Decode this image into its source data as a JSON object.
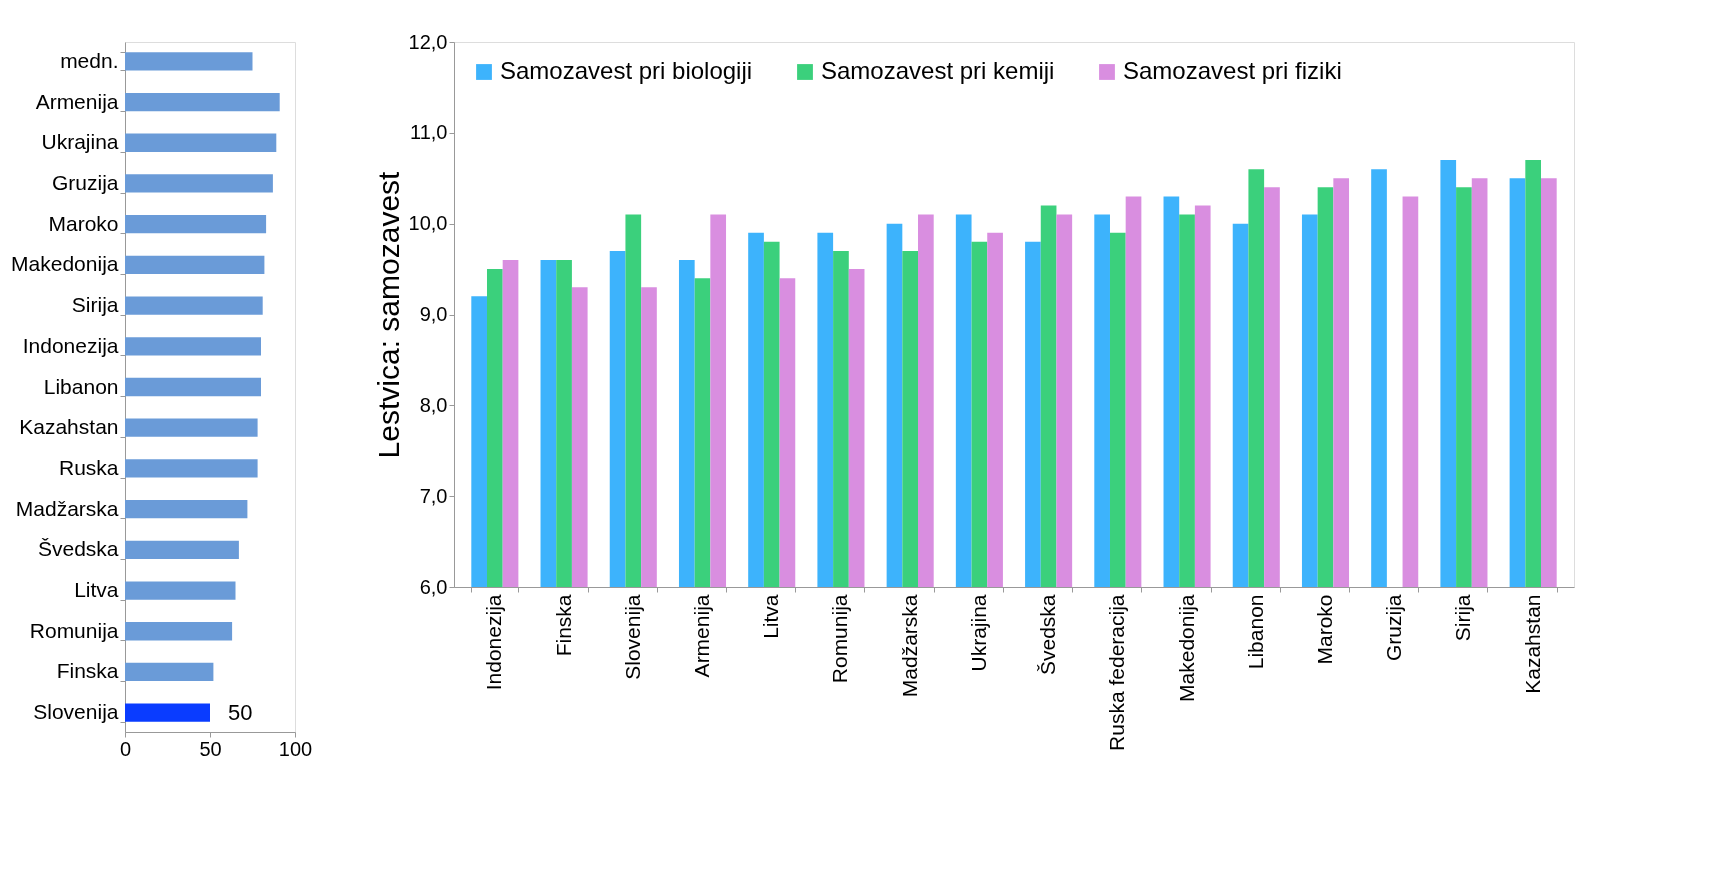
{
  "chart_data": [
    {
      "type": "bar",
      "orientation": "horizontal",
      "categories": [
        "medn.",
        "Armenija",
        "Ukrajina",
        "Gruzija",
        "Maroko",
        "Makedonija",
        "Sirija",
        "Indonezija",
        "Libanon",
        "Kazahstan",
        "Ruska",
        "Madžarska",
        "Švedska",
        "Litva",
        "Romunija",
        "Finska",
        "Slovenija"
      ],
      "values": [
        75,
        91,
        89,
        87,
        83,
        82,
        81,
        80,
        80,
        78,
        78,
        72,
        67,
        65,
        63,
        52,
        50
      ],
      "colors": [
        "#6a9bd8",
        "#6a9bd8",
        "#6a9bd8",
        "#6a9bd8",
        "#6a9bd8",
        "#6a9bd8",
        "#6a9bd8",
        "#6a9bd8",
        "#6a9bd8",
        "#6a9bd8",
        "#6a9bd8",
        "#6a9bd8",
        "#6a9bd8",
        "#6a9bd8",
        "#6a9bd8",
        "#6a9bd8",
        "#0a3cff"
      ],
      "value_labels": [
        null,
        null,
        null,
        null,
        null,
        null,
        null,
        null,
        null,
        null,
        null,
        null,
        null,
        null,
        null,
        null,
        "50"
      ],
      "xlim": [
        0,
        100
      ],
      "xticks": [
        0,
        50,
        100
      ],
      "grid": false,
      "legend": false
    },
    {
      "type": "bar",
      "ylabel": "Lestvica: samozavest",
      "categories": [
        "Indonezija",
        "Finska",
        "Slovenija",
        "Armenija",
        "Litva",
        "Romunija",
        "Madžarska",
        "Ukrajina",
        "Švedska",
        "Ruska federacija",
        "Makedonija",
        "Libanon",
        "Maroko",
        "Gruzija",
        "Sirija",
        "Kazahstan"
      ],
      "series": [
        {
          "name": "Samozavest pri biologiji",
          "color": "#3db3fc",
          "values": [
            9.2,
            9.6,
            9.7,
            9.6,
            9.9,
            9.9,
            10.0,
            10.1,
            9.8,
            10.1,
            10.3,
            10.0,
            10.1,
            10.6,
            10.7,
            10.5
          ]
        },
        {
          "name": "Samozavest pri kemiji",
          "color": "#3bd07c",
          "values": [
            9.5,
            9.6,
            10.1,
            9.4,
            9.8,
            9.7,
            9.7,
            9.8,
            10.2,
            9.9,
            10.1,
            10.6,
            10.4,
            6.0,
            10.4,
            10.7
          ]
        },
        {
          "name": "Samozavest pri fiziki",
          "color": "#d98ee0",
          "values": [
            9.6,
            9.3,
            9.3,
            10.1,
            9.4,
            9.5,
            10.1,
            9.9,
            10.1,
            10.3,
            10.2,
            10.4,
            10.5,
            10.3,
            10.5,
            10.5
          ]
        }
      ],
      "ylim": [
        6,
        12
      ],
      "yticks": [
        {
          "value": 6,
          "label": "6,0"
        },
        {
          "value": 7,
          "label": "7,0"
        },
        {
          "value": 8,
          "label": "8,0"
        },
        {
          "value": 9,
          "label": "9,0"
        },
        {
          "value": 10,
          "label": "10,0"
        },
        {
          "value": 11,
          "label": "11,0"
        },
        {
          "value": 12,
          "label": "12,0"
        }
      ],
      "grid": false,
      "legend": "top"
    }
  ]
}
